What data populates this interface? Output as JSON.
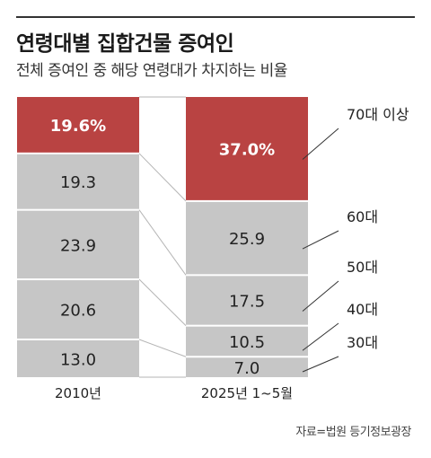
{
  "header": {
    "title": "연령대별 집합건물 증여인",
    "subtitle": "전체 증여인 중 해당 연령대가 차지하는 비율"
  },
  "footer": {
    "source": "자료=법원 등기정보광장"
  },
  "colors": {
    "highlight": "#b94342",
    "segment": "#c6c6c6",
    "connector": "#b5b5b5",
    "rule": "#333333"
  },
  "chart_data": {
    "type": "bar",
    "stacked": true,
    "unit": "%",
    "categories": [
      "2010년",
      "2025년 1~5월"
    ],
    "series": [
      {
        "name": "70대 이상",
        "values": [
          19.6,
          37.0
        ],
        "labels": [
          "19.6%",
          "37.0%"
        ],
        "color": "#b94342"
      },
      {
        "name": "60대",
        "values": [
          19.3,
          25.9
        ],
        "labels": [
          "19.3",
          "25.9"
        ],
        "color": "#c6c6c6"
      },
      {
        "name": "50대",
        "values": [
          23.9,
          17.5
        ],
        "labels": [
          "23.9",
          "17.5"
        ],
        "color": "#c6c6c6"
      },
      {
        "name": "40대",
        "values": [
          20.6,
          10.5
        ],
        "labels": [
          "20.6",
          "10.5"
        ],
        "color": "#c6c6c6"
      },
      {
        "name": "30대",
        "values": [
          13.0,
          7.0
        ],
        "labels": [
          "13.0",
          "7.0"
        ],
        "color": "#c6c6c6"
      }
    ]
  }
}
